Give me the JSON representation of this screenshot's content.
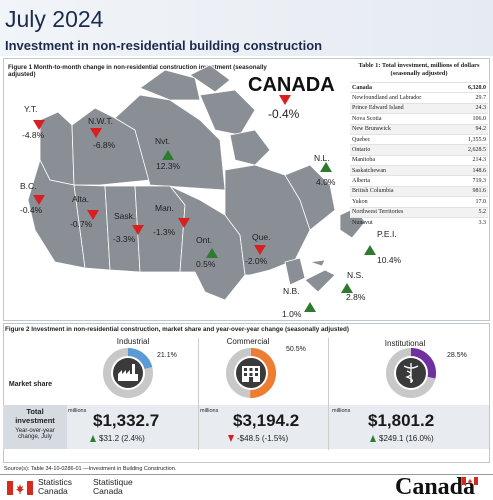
{
  "header": {
    "title": "July 2024",
    "subtitle": "Investment in non-residential building construction"
  },
  "figure1": {
    "caption": "Figure 1  Month-to-month change in non-residential construction investment (seasonally adjusted)",
    "canada_label": "CANADA",
    "canada_value": "-0.4%",
    "provinces": [
      {
        "name": "Y.T.",
        "value": "-4.8%",
        "direction": "down"
      },
      {
        "name": "N.W.T.",
        "value": "-6.8%",
        "direction": "down"
      },
      {
        "name": "Nvt.",
        "value": "12.3%",
        "direction": "up"
      },
      {
        "name": "N.L.",
        "value": "4.0%",
        "direction": "up"
      },
      {
        "name": "B.C.",
        "value": "-0.4%",
        "direction": "down"
      },
      {
        "name": "Alta.",
        "value": "-0.7%",
        "direction": "down"
      },
      {
        "name": "Sask.",
        "value": "-3.3%",
        "direction": "down"
      },
      {
        "name": "Man.",
        "value": "-1.3%",
        "direction": "down"
      },
      {
        "name": "Ont.",
        "value": "0.5%",
        "direction": "up"
      },
      {
        "name": "Que.",
        "value": "-2.0%",
        "direction": "down"
      },
      {
        "name": "P.E.I.",
        "value": "10.4%",
        "direction": "up"
      },
      {
        "name": "N.S.",
        "value": "2.8%",
        "direction": "up"
      },
      {
        "name": "N.B.",
        "value": "1.0%",
        "direction": "up"
      }
    ],
    "colors": {
      "increase": "#2e7a2e",
      "decrease": "#d92020",
      "map_fill": "#8a8f96",
      "map_stroke": "#ffffff"
    }
  },
  "table1": {
    "title": "Table 1: Total investment, millions of dollars (seasonally adjusted)",
    "rows": [
      {
        "region": "Canada",
        "value": "6,328.0"
      },
      {
        "region": "Newfoundland and Labrador",
        "value": "29.7"
      },
      {
        "region": "Prince Edward Island",
        "value": "24.3"
      },
      {
        "region": "Nova Scotia",
        "value": "106.0"
      },
      {
        "region": "New Brunswick",
        "value": "94.2"
      },
      {
        "region": "Quebec",
        "value": "1,355.9"
      },
      {
        "region": "Ontario",
        "value": "2,628.5"
      },
      {
        "region": "Manitoba",
        "value": "214.3"
      },
      {
        "region": "Saskatchewan",
        "value": "148.6"
      },
      {
        "region": "Alberta",
        "value": "719.3"
      },
      {
        "region": "British Columbia",
        "value": "981.6"
      },
      {
        "region": "Yukon",
        "value": "17.0"
      },
      {
        "region": "Northwest Territories",
        "value": "5.2"
      },
      {
        "region": "Nunavut",
        "value": "3.3"
      }
    ]
  },
  "figure2": {
    "caption": "Figure 2 Investment in non-residential construction, market share and year-over-year change (seasonally adjusted)",
    "row_labels": {
      "market_share": "Market share",
      "total": "Total investment",
      "yoy": "Year-over-year change, July"
    },
    "units": "millions",
    "categories": [
      {
        "name": "Industrial",
        "share": "21.1%",
        "share_value": 21.1,
        "total": "$1,332.7",
        "change": "$31.2 (2.4%)",
        "direction": "up",
        "color": "#5b9bd5",
        "icon": "factory-icon"
      },
      {
        "name": "Commercial",
        "share": "50.5%",
        "share_value": 50.5,
        "total": "$3,194.2",
        "change": "-$48.5 (-1.5%)",
        "direction": "down",
        "color": "#ed7d31",
        "icon": "office-building-icon"
      },
      {
        "name": "Institutional",
        "share": "28.5%",
        "share_value": 28.5,
        "total": "$1,801.2",
        "change": "$249.1 (16.0%)",
        "direction": "up",
        "color": "#7030a0",
        "icon": "caduceus-icon"
      }
    ]
  },
  "footer": {
    "source": "Source(s): Table 34-10-0286-01 —Investment in Building Construction.",
    "agency_en_1": "Statistics",
    "agency_en_2": "Canada",
    "agency_fr_1": "Statistique",
    "agency_fr_2": "Canada",
    "wordmark": "Canada"
  }
}
